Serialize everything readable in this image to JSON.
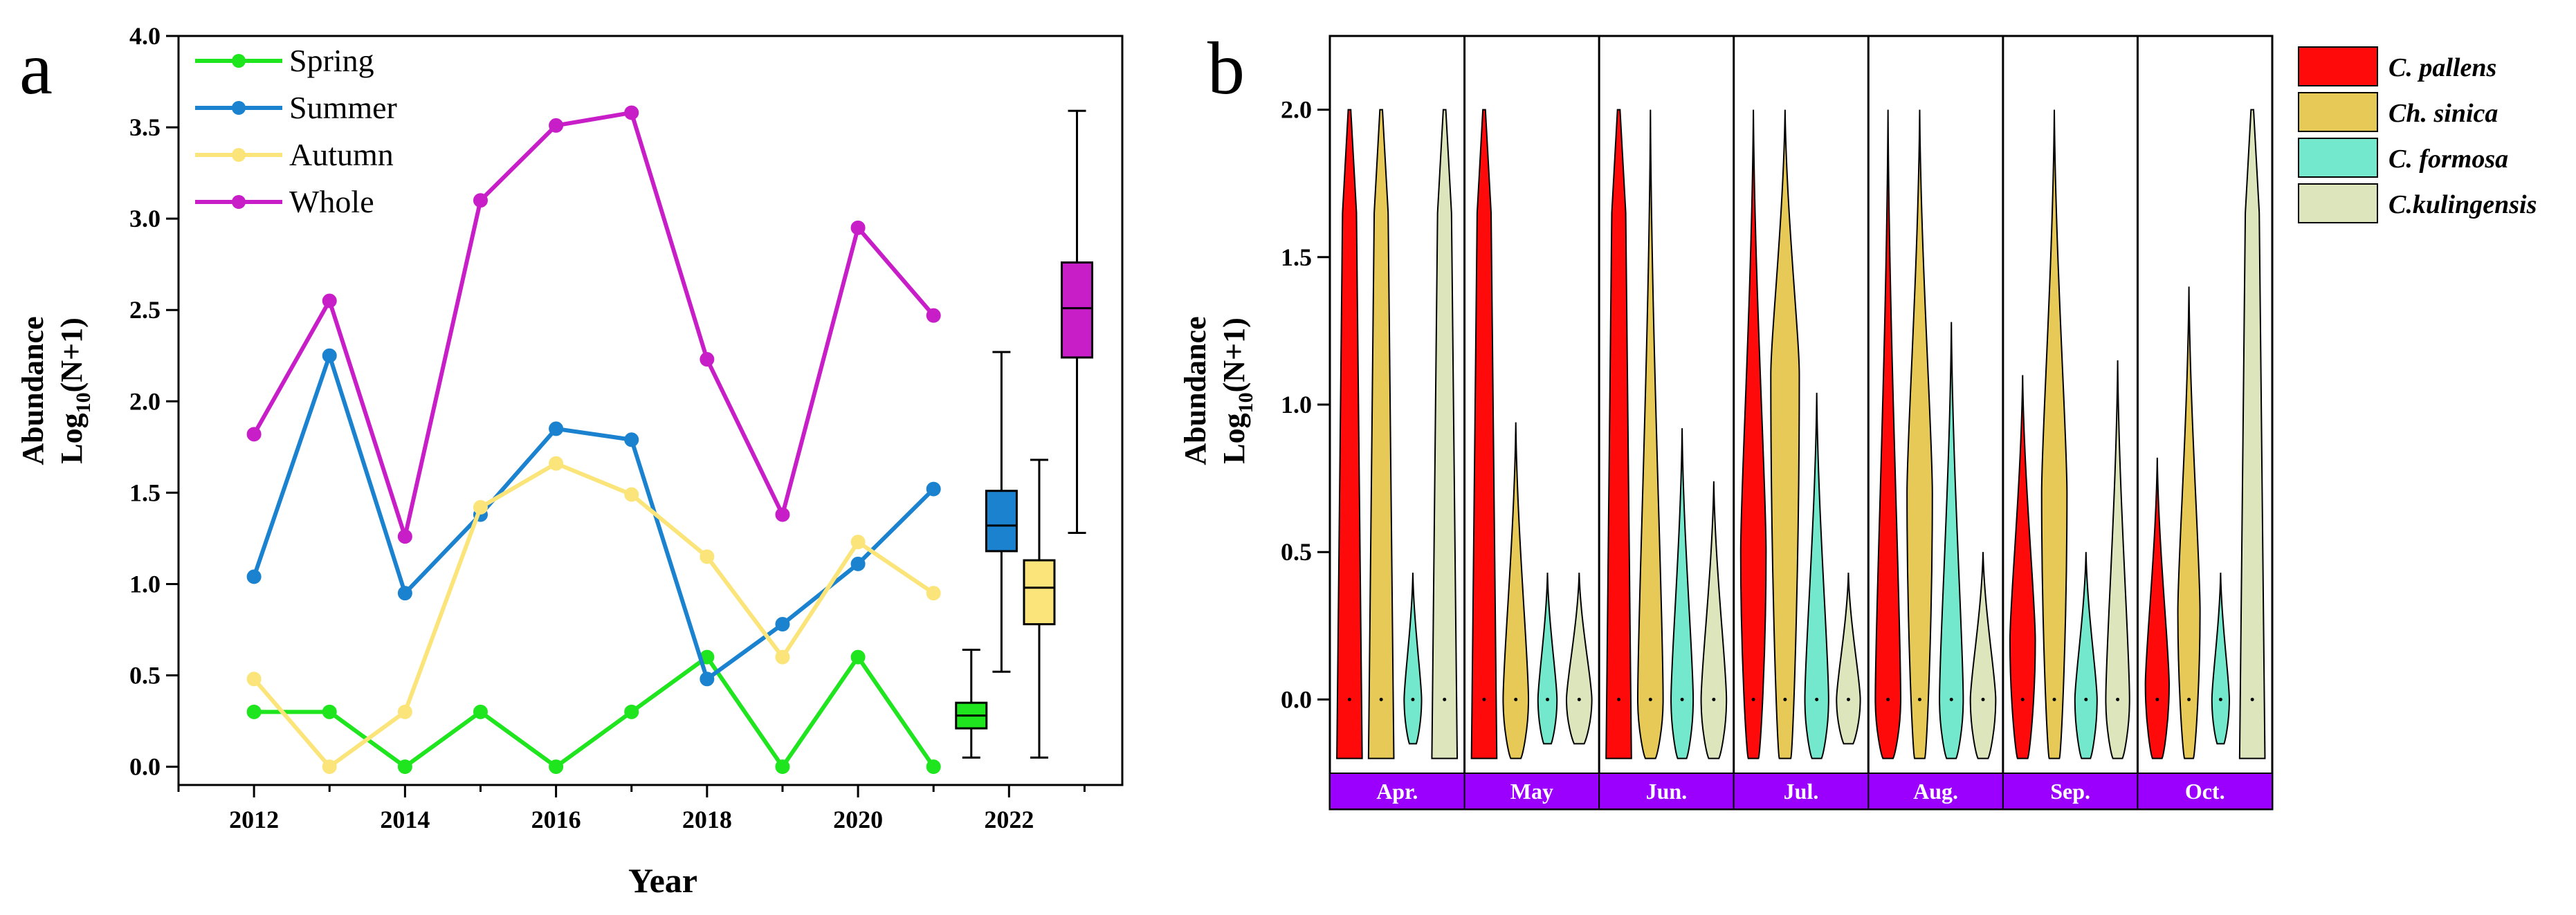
{
  "figure": {
    "panel_a_letter": "a",
    "panel_b_letter": "b"
  },
  "chart_data": [
    {
      "type": "line",
      "panel": "a",
      "xlabel": "Year",
      "ylabel_line1": "Abundance",
      "ylabel_line2_base": "Log",
      "ylabel_line2_sub": "10",
      "ylabel_line2_rest": "(N+1)",
      "xlim": [
        2011,
        2023.5
      ],
      "ylim": [
        -0.1,
        4.0
      ],
      "x_ticks": [
        2012,
        2014,
        2016,
        2018,
        2020,
        2022
      ],
      "y_ticks": [
        0.0,
        0.5,
        1.0,
        1.5,
        2.0,
        2.5,
        3.0,
        3.5,
        4.0
      ],
      "y_tick_labels": [
        "0.0",
        "0.5",
        "1.0",
        "1.5",
        "2.0",
        "2.5",
        "3.0",
        "3.5",
        "4.0"
      ],
      "grid": false,
      "legend_position": "top-left",
      "x": [
        2012,
        2013,
        2014,
        2015,
        2016,
        2017,
        2018,
        2019,
        2020,
        2021
      ],
      "series": [
        {
          "name": "Spring",
          "color": "#1fe51f",
          "values": [
            0.3,
            0.3,
            0.0,
            0.3,
            0.0,
            0.3,
            0.6,
            0.0,
            0.6,
            0.0
          ]
        },
        {
          "name": "Summer",
          "color": "#1a82cf",
          "values": [
            1.04,
            2.25,
            0.95,
            1.38,
            1.85,
            1.79,
            0.48,
            0.78,
            1.11,
            1.52
          ]
        },
        {
          "name": "Autumn",
          "color": "#fbe57a",
          "values": [
            0.48,
            0.0,
            0.3,
            1.42,
            1.66,
            1.49,
            1.15,
            0.6,
            1.23,
            0.95
          ]
        },
        {
          "name": "Whole",
          "color": "#c81ec8",
          "values": [
            1.82,
            2.55,
            1.26,
            3.1,
            3.51,
            3.58,
            2.23,
            1.38,
            2.95,
            2.47
          ]
        }
      ],
      "boxplots": [
        {
          "series": "Spring",
          "x": 2021.5,
          "whisker_low": 0.05,
          "q1": 0.21,
          "median": 0.28,
          "q3": 0.35,
          "whisker_high": 0.64,
          "color": "#1fe51f"
        },
        {
          "series": "Summer",
          "x": 2021.9,
          "whisker_low": 0.52,
          "q1": 1.18,
          "median": 1.32,
          "q3": 1.51,
          "whisker_high": 2.27,
          "color": "#1a82cf"
        },
        {
          "series": "Autumn",
          "x": 2022.4,
          "whisker_low": 0.05,
          "q1": 0.78,
          "median": 0.98,
          "q3": 1.13,
          "whisker_high": 1.68,
          "color": "#fbe57a"
        },
        {
          "series": "Whole",
          "x": 2022.9,
          "whisker_low": 1.28,
          "q1": 2.24,
          "median": 2.51,
          "q3": 2.76,
          "whisker_high": 3.59,
          "color": "#c81ec8"
        }
      ]
    },
    {
      "type": "violin",
      "panel": "b",
      "ylabel_line1": "Abundance",
      "ylabel_line2_base": "Log",
      "ylabel_line2_sub": "10",
      "ylabel_line2_rest": "(N+1)",
      "ylim": [
        -0.25,
        2.25
      ],
      "y_ticks": [
        0.0,
        0.5,
        1.0,
        1.5,
        2.0
      ],
      "y_tick_labels": [
        "0.0",
        "0.5",
        "1.0",
        "1.5",
        "2.0"
      ],
      "month_strip_color": "#9b00ff",
      "months": [
        "Apr.",
        "May",
        "Jun.",
        "Jul.",
        "Aug.",
        "Sep.",
        "Oct."
      ],
      "legend_position": "right",
      "species": [
        {
          "name": "C. pallens",
          "color": "#ff0a0a"
        },
        {
          "name": "Ch. sinica",
          "color": "#e6c957"
        },
        {
          "name": "C. formosa",
          "color": "#74e8cc"
        },
        {
          "name": "C.kulingensis",
          "color": "#dde5bd"
        }
      ],
      "violins": [
        [
          {
            "min": -0.2,
            "max": 2.0,
            "peak": 2.0,
            "width": 0.8,
            "shape": "flat"
          },
          {
            "min": -0.2,
            "max": 2.0,
            "peak": 2.0,
            "width": 0.8,
            "shape": "flat"
          },
          {
            "min": -0.15,
            "max": 0.43,
            "peak": 0.0,
            "width": 0.55,
            "shape": "bulb"
          },
          {
            "min": -0.2,
            "max": 2.0,
            "peak": 2.0,
            "width": 0.8,
            "shape": "flat"
          }
        ],
        [
          {
            "min": -0.2,
            "max": 2.0,
            "peak": 2.0,
            "width": 0.8,
            "shape": "flat"
          },
          {
            "min": -0.2,
            "max": 0.94,
            "peak": 0.0,
            "width": 0.8,
            "shape": "bulb"
          },
          {
            "min": -0.15,
            "max": 0.43,
            "peak": 0.0,
            "width": 0.6,
            "shape": "bulb"
          },
          {
            "min": -0.15,
            "max": 0.43,
            "peak": 0.0,
            "width": 0.8,
            "shape": "bulb"
          }
        ],
        [
          {
            "min": -0.2,
            "max": 2.0,
            "peak": 2.0,
            "width": 0.8,
            "shape": "flat"
          },
          {
            "min": -0.2,
            "max": 2.0,
            "peak": 0.0,
            "width": 0.8,
            "shape": "bulb"
          },
          {
            "min": -0.2,
            "max": 0.92,
            "peak": 0.0,
            "width": 0.7,
            "shape": "bulb"
          },
          {
            "min": -0.2,
            "max": 0.74,
            "peak": 0.0,
            "width": 0.8,
            "shape": "bulb"
          }
        ],
        [
          {
            "min": -0.2,
            "max": 2.0,
            "peak": 0.5,
            "width": 0.8,
            "shape": "bulb"
          },
          {
            "min": -0.2,
            "max": 2.0,
            "peak": 1.1,
            "width": 0.9,
            "shape": "bulb"
          },
          {
            "min": -0.2,
            "max": 1.04,
            "peak": 0.0,
            "width": 0.75,
            "shape": "bulb"
          },
          {
            "min": -0.15,
            "max": 0.43,
            "peak": 0.0,
            "width": 0.75,
            "shape": "bulb"
          }
        ],
        [
          {
            "min": -0.2,
            "max": 2.0,
            "peak": 0.0,
            "width": 0.8,
            "shape": "bulb"
          },
          {
            "min": -0.2,
            "max": 2.0,
            "peak": 0.7,
            "width": 0.8,
            "shape": "bulb"
          },
          {
            "min": -0.2,
            "max": 1.28,
            "peak": 0.0,
            "width": 0.75,
            "shape": "bulb"
          },
          {
            "min": -0.2,
            "max": 0.5,
            "peak": 0.0,
            "width": 0.8,
            "shape": "bulb"
          }
        ],
        [
          {
            "min": -0.2,
            "max": 1.1,
            "peak": 0.2,
            "width": 0.8,
            "shape": "bulb"
          },
          {
            "min": -0.2,
            "max": 2.0,
            "peak": 0.7,
            "width": 0.8,
            "shape": "bulb"
          },
          {
            "min": -0.2,
            "max": 0.5,
            "peak": 0.0,
            "width": 0.7,
            "shape": "bulb"
          },
          {
            "min": -0.2,
            "max": 1.15,
            "peak": 0.0,
            "width": 0.75,
            "shape": "bulb"
          }
        ],
        [
          {
            "min": -0.2,
            "max": 0.82,
            "peak": 0.05,
            "width": 0.75,
            "shape": "bulb"
          },
          {
            "min": -0.2,
            "max": 1.4,
            "peak": 0.3,
            "width": 0.7,
            "shape": "bulb"
          },
          {
            "min": -0.15,
            "max": 0.43,
            "peak": 0.0,
            "width": 0.55,
            "shape": "bulb"
          },
          {
            "min": -0.2,
            "max": 2.0,
            "peak": 2.0,
            "width": 0.8,
            "shape": "flat"
          }
        ]
      ]
    }
  ]
}
